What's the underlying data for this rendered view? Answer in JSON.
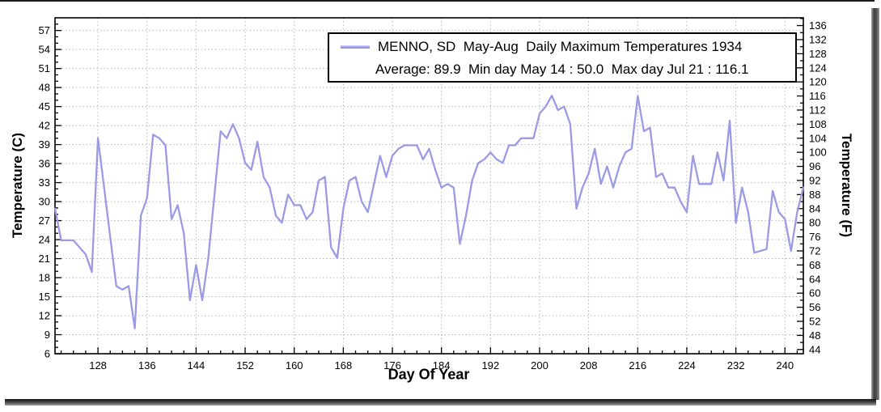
{
  "chart_data": {
    "type": "line",
    "title": "MENNO, SD  May-Aug  Daily Maximum Temperatures 1934",
    "subtitle_stats": "Average: 89.9  Min day May 14 : 50.0  Max day Jul 21 : 116.1",
    "xlabel": "Day Of Year",
    "ylabel_left": "Temperature (C)",
    "ylabel_right": "Temperature (F)",
    "legend_position": "top-center",
    "grid": "dotted",
    "line_color": "#9a9ae6",
    "grid_color": "#b4b4b4",
    "x_range_days": [
      121,
      243
    ],
    "y_range_c": [
      6,
      59
    ],
    "x_tick_labels": [
      128,
      136,
      144,
      152,
      160,
      168,
      176,
      184,
      192,
      200,
      208,
      216,
      224,
      232,
      240
    ],
    "y_left_tick_labels_c": [
      6,
      9,
      12,
      15,
      18,
      21,
      24,
      27,
      30,
      33,
      36,
      39,
      42,
      45,
      48,
      51,
      54,
      57
    ],
    "y_right_tick_labels_f": [
      44,
      48,
      52,
      56,
      60,
      64,
      68,
      72,
      76,
      80,
      84,
      88,
      92,
      96,
      100,
      104,
      108,
      112,
      116,
      120,
      124,
      128,
      132,
      136
    ],
    "stats": {
      "average_f": 89.9,
      "min_f": 50.0,
      "min_day_label": "May 14",
      "max_f": 116.1,
      "max_day_label": "Jul 21"
    },
    "series": [
      {
        "name": "MENNO, SD  May-Aug  Daily Maximum Temperatures 1934",
        "unit": "F",
        "days": [
          121,
          122,
          123,
          124,
          125,
          126,
          127,
          128,
          129,
          130,
          131,
          132,
          133,
          134,
          135,
          136,
          137,
          138,
          139,
          140,
          141,
          142,
          143,
          144,
          145,
          146,
          147,
          148,
          149,
          150,
          151,
          152,
          153,
          154,
          155,
          156,
          157,
          158,
          159,
          160,
          161,
          162,
          163,
          164,
          165,
          166,
          167,
          168,
          169,
          170,
          171,
          172,
          173,
          174,
          175,
          176,
          177,
          178,
          179,
          180,
          181,
          182,
          183,
          184,
          185,
          186,
          187,
          188,
          189,
          190,
          191,
          192,
          193,
          194,
          195,
          196,
          197,
          198,
          199,
          200,
          201,
          202,
          203,
          204,
          205,
          206,
          207,
          208,
          209,
          210,
          211,
          212,
          213,
          214,
          215,
          216,
          217,
          218,
          219,
          220,
          221,
          222,
          223,
          224,
          225,
          226,
          227,
          228,
          229,
          230,
          231,
          232,
          233,
          234,
          235,
          236,
          237,
          238,
          239,
          240,
          241,
          242,
          243
        ],
        "values_f": [
          84,
          75,
          75,
          75,
          73,
          71,
          66,
          104,
          90,
          76,
          62,
          61,
          62,
          50,
          82,
          87,
          105,
          104,
          102,
          81,
          85,
          77,
          58,
          68,
          58,
          70,
          88,
          106,
          104,
          108,
          104,
          97,
          95,
          103,
          93,
          90,
          82,
          80,
          88,
          85,
          85,
          81,
          83,
          92,
          93,
          73,
          70,
          84,
          92,
          93,
          86,
          83,
          91,
          99,
          93,
          99,
          101,
          102,
          102,
          102,
          98,
          101,
          95,
          90,
          91,
          90,
          74,
          82,
          92,
          97,
          98,
          100,
          98,
          97,
          102,
          102,
          104,
          104,
          104,
          111,
          113,
          116.1,
          112,
          113,
          108,
          84,
          90,
          94,
          101,
          91,
          96,
          90,
          96,
          100,
          101,
          116,
          106,
          107,
          93,
          94,
          90,
          90,
          86,
          83,
          99,
          91,
          91,
          91,
          100,
          92,
          109,
          80,
          90,
          83,
          71.5,
          72,
          72.5,
          89,
          83,
          81,
          72,
          83,
          90
        ]
      }
    ]
  }
}
